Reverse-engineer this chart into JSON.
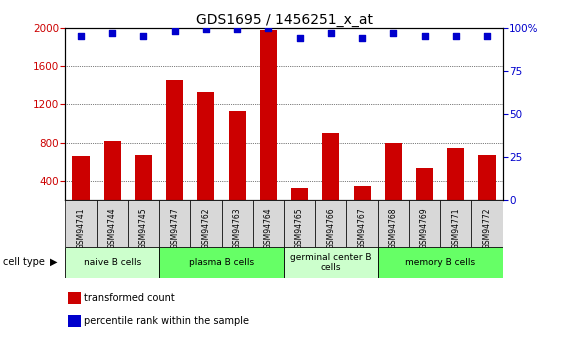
{
  "title": "GDS1695 / 1456251_x_at",
  "samples": [
    "GSM94741",
    "GSM94744",
    "GSM94745",
    "GSM94747",
    "GSM94762",
    "GSM94763",
    "GSM94764",
    "GSM94765",
    "GSM94766",
    "GSM94767",
    "GSM94768",
    "GSM94769",
    "GSM94771",
    "GSM94772"
  ],
  "bar_values": [
    660,
    820,
    670,
    1450,
    1330,
    1130,
    1980,
    330,
    900,
    350,
    800,
    540,
    740,
    670
  ],
  "dot_values": [
    95,
    97,
    95,
    98,
    99,
    99,
    100,
    94,
    97,
    94,
    97,
    95,
    95,
    95
  ],
  "bar_color": "#cc0000",
  "dot_color": "#0000cc",
  "ylim_left": [
    200,
    2000
  ],
  "ylim_right": [
    0,
    100
  ],
  "yticks_left": [
    400,
    800,
    1200,
    1600,
    2000
  ],
  "yticks_right": [
    0,
    25,
    50,
    75,
    100
  ],
  "cell_groups": [
    {
      "label": "naive B cells",
      "start": 0,
      "end": 3,
      "color": "#ccffcc"
    },
    {
      "label": "plasma B cells",
      "start": 3,
      "end": 7,
      "color": "#66ff66"
    },
    {
      "label": "germinal center B\ncells",
      "start": 7,
      "end": 10,
      "color": "#ccffcc"
    },
    {
      "label": "memory B cells",
      "start": 10,
      "end": 14,
      "color": "#66ff66"
    }
  ],
  "cell_type_label": "cell type",
  "legend_items": [
    {
      "label": "transformed count",
      "color": "#cc0000"
    },
    {
      "label": "percentile rank within the sample",
      "color": "#0000cc"
    }
  ],
  "bar_width": 0.55,
  "background_color": "#ffffff"
}
